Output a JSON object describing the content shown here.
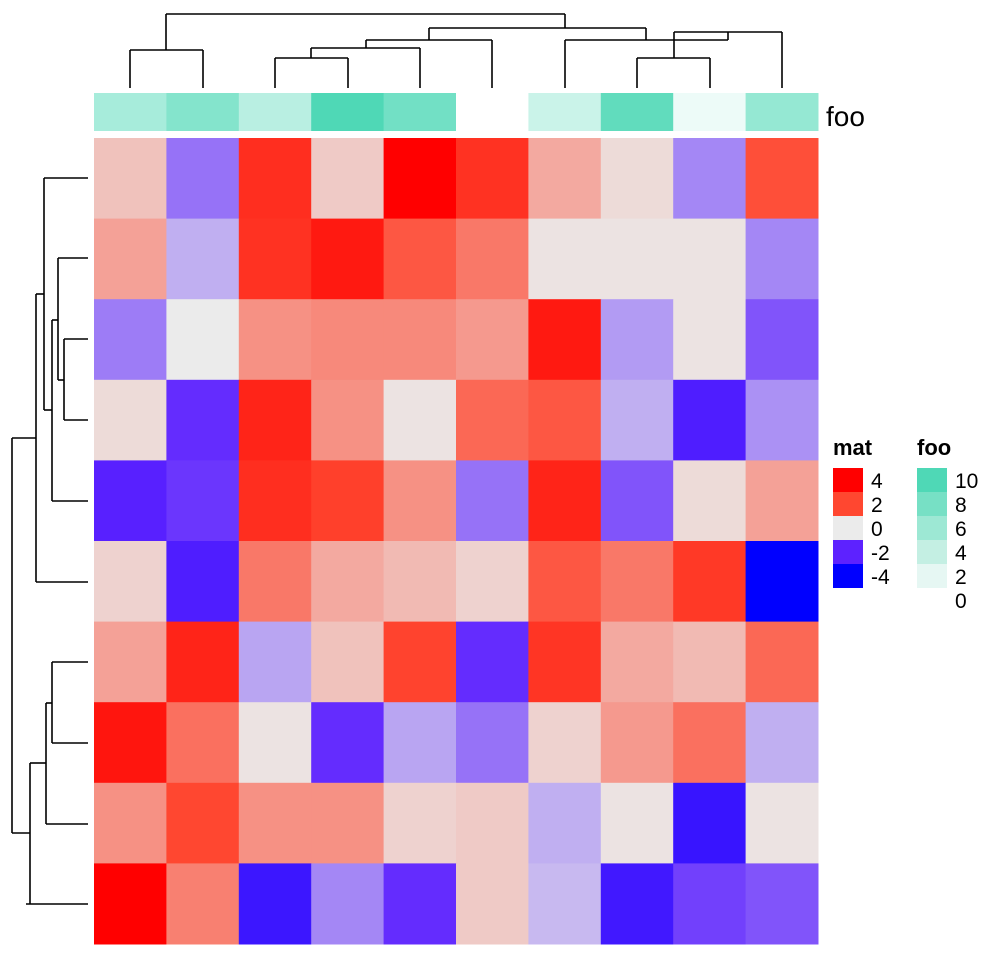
{
  "chart_data": {
    "type": "heatmap",
    "title": "",
    "xlabel": "",
    "ylabel": "",
    "rows": 10,
    "cols": 10,
    "values": [
      [
        0.5,
        -1.2,
        2.7,
        0.4,
        4.0,
        2.6,
        0.8,
        0.2,
        -1.0,
        1.9
      ],
      [
        0.9,
        -0.6,
        2.6,
        3.3,
        1.8,
        1.4,
        0.1,
        0.1,
        0.1,
        -1.0
      ],
      [
        -1.1,
        0.0,
        1.1,
        1.2,
        1.2,
        1.0,
        3.3,
        -0.8,
        0.1,
        -1.5
      ],
      [
        0.2,
        -1.9,
        3.0,
        1.1,
        0.1,
        1.6,
        1.8,
        -0.6,
        -2.3,
        -0.9
      ],
      [
        -2.1,
        -1.8,
        2.7,
        2.2,
        1.1,
        -1.2,
        3.0,
        -1.5,
        0.2,
        0.9
      ],
      [
        0.3,
        -2.3,
        1.4,
        0.8,
        0.6,
        0.3,
        1.8,
        1.4,
        2.4,
        -4.0
      ],
      [
        0.9,
        3.0,
        -0.7,
        0.5,
        2.1,
        -1.9,
        2.5,
        0.8,
        0.6,
        1.6
      ],
      [
        3.4,
        1.5,
        0.1,
        -1.9,
        -0.7,
        -1.2,
        0.3,
        1.0,
        1.5,
        -0.6
      ],
      [
        1.1,
        2.0,
        1.1,
        1.1,
        0.3,
        0.4,
        -0.6,
        0.1,
        -2.8,
        0.1
      ],
      [
        4.0,
        1.3,
        -2.7,
        -1.0,
        -1.9,
        0.4,
        -0.5,
        -2.6,
        -1.7,
        -1.5
      ]
    ],
    "annotation": {
      "name": "foo",
      "values": [
        5,
        7,
        4,
        10,
        8,
        0,
        3,
        9,
        1,
        6
      ]
    },
    "color_scale": {
      "stops": [
        {
          "value": -4,
          "color": "#0000ff"
        },
        {
          "value": -2,
          "color": "#5d22ff"
        },
        {
          "value": 0,
          "color": "#ebebeb"
        },
        {
          "value": 2,
          "color": "#ff4730"
        },
        {
          "value": 4,
          "color": "#ff0000"
        }
      ]
    },
    "annotation_colors": {
      "stops": [
        {
          "value": 0,
          "color": "#ffffff"
        },
        {
          "value": 10,
          "color": "#4fd8b6"
        }
      ]
    },
    "legends": [
      {
        "title": "mat",
        "entries": [
          {
            "label": "4",
            "color": "#ff0000"
          },
          {
            "label": "2",
            "color": "#ff4730"
          },
          {
            "label": "0",
            "color": "#ebebeb"
          },
          {
            "label": "-2",
            "color": "#5d22ff"
          },
          {
            "label": "-4",
            "color": "#0000ff"
          }
        ]
      },
      {
        "title": "foo",
        "entries": [
          {
            "label": "10",
            "color": "#4fd8b6"
          },
          {
            "label": "8",
            "color": "#77e0c5"
          },
          {
            "label": "6",
            "color": "#9de8d4"
          },
          {
            "label": "4",
            "color": "#c4efe3"
          },
          {
            "label": "2",
            "color": "#e6f7f3"
          },
          {
            "label": "0",
            "color": "#ffffff"
          }
        ]
      }
    ]
  }
}
